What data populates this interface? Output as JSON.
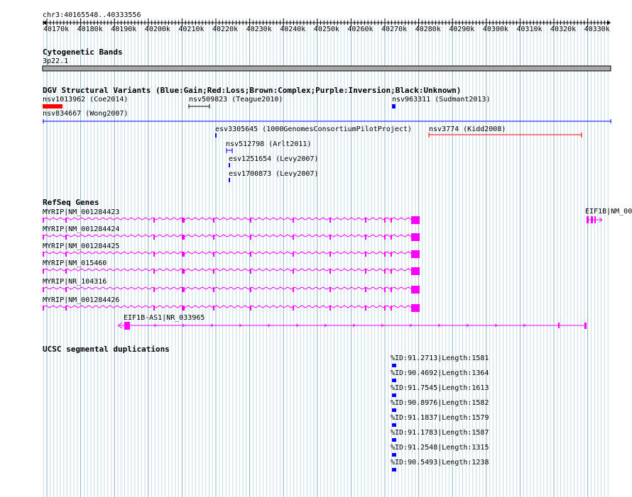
{
  "browser": {
    "locus": "chr3:40165548..40333556",
    "ruler_ticks": [
      "40170k",
      "40180k",
      "40190k",
      "40200k",
      "40210k",
      "40220k",
      "40230k",
      "40240k",
      "40250k",
      "40260k",
      "40270k",
      "40280k",
      "40290k",
      "40300k",
      "40310k",
      "40320k",
      "40330k"
    ]
  },
  "tracks": {
    "cyto": {
      "title": "Cytogenetic Bands",
      "band": "3p22.1"
    },
    "dgv": {
      "title": "DGV Structural Variants (Blue:Gain;Red:Loss;Brown:Complex;Purple:Inversion;Black:Unknown)",
      "features": [
        {
          "label": "nsv1013962 (Coe2014)",
          "color": "#ff0000"
        },
        {
          "label": "nsv509823 (Teague2010)",
          "color": "#000000"
        },
        {
          "label": "nsv963311 (Sudmant2013)",
          "color": "#0000ff"
        },
        {
          "label": "nsv834667 (Wong2007)",
          "color": "#0000ff"
        },
        {
          "label": "esv3305645 (1000GenomesConsortiumPilotProject)",
          "color": "#0000ff"
        },
        {
          "label": "nsv3774 (Kidd2008)",
          "color": "#ff0000"
        },
        {
          "label": "nsv512798 (Arlt2011)",
          "color": "#0000ff"
        },
        {
          "label": "esv1251654 (Levy2007)",
          "color": "#0000ff"
        },
        {
          "label": "esv1700873 (Levy2007)",
          "color": "#0000ff"
        }
      ]
    },
    "refseq": {
      "title": "RefSeq Genes",
      "color": "#ff00ff",
      "transcripts": [
        "MYRIP|NM_001284423",
        "MYRIP|NM_001284424",
        "MYRIP|NM_001284425",
        "MYRIP|NM_015460",
        "MYRIP|NR_104316",
        "MYRIP|NM_001284426"
      ],
      "antisense": "EIF1B-AS1|NR_033965",
      "right_gene": "EIF1B|NM_00"
    },
    "segdup": {
      "title": "UCSC segmental duplications",
      "color": "#0000ff",
      "items": [
        "%ID:91.2713|Length:1581",
        "%ID:90.4692|Length:1364",
        "%ID:91.7545|Length:1613",
        "%ID:90.8976|Length:1582",
        "%ID:91.1837|Length:1579",
        "%ID:91.1783|Length:1587",
        "%ID:91.2548|Length:1315",
        "%ID:90.5493|Length:1238"
      ]
    }
  }
}
